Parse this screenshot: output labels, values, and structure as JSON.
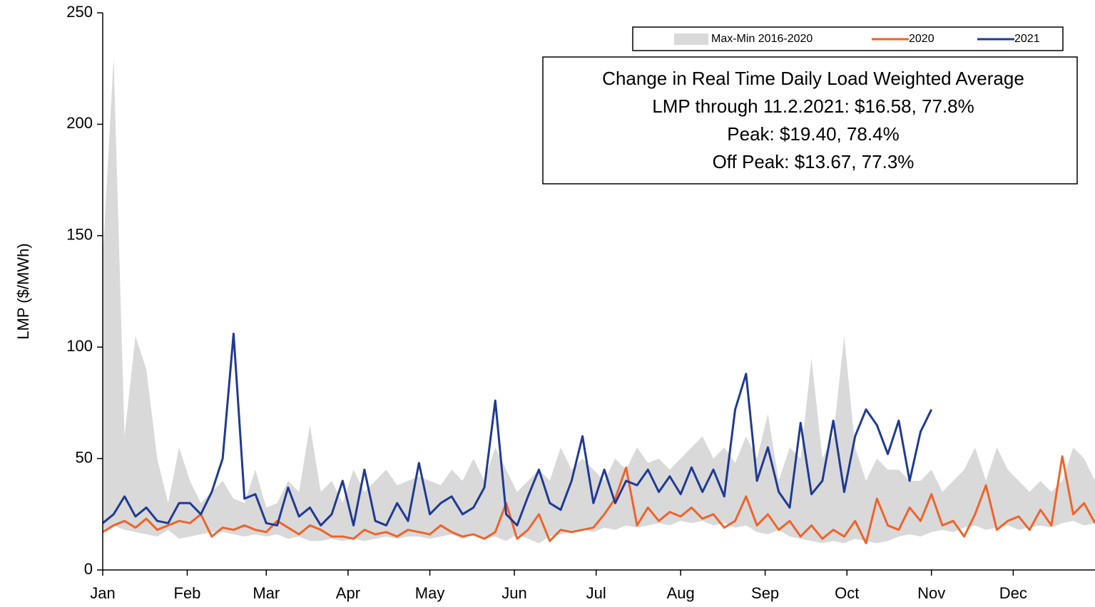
{
  "chart_data": {
    "type": "line",
    "y_label": "LMP ($/MWh)",
    "xlim": [
      0,
      364
    ],
    "xticks": [
      {
        "value": 0,
        "label": "Jan"
      },
      {
        "value": 31,
        "label": "Feb"
      },
      {
        "value": 60,
        "label": "Mar"
      },
      {
        "value": 90,
        "label": "Apr"
      },
      {
        "value": 120,
        "label": "May"
      },
      {
        "value": 151,
        "label": "Jun"
      },
      {
        "value": 181,
        "label": "Jul"
      },
      {
        "value": 212,
        "label": "Aug"
      },
      {
        "value": 243,
        "label": "Sep"
      },
      {
        "value": 273,
        "label": "Oct"
      },
      {
        "value": 304,
        "label": "Nov"
      },
      {
        "value": 334,
        "label": "Dec"
      }
    ],
    "ylim": [
      0,
      250
    ],
    "yticks": [
      0,
      50,
      100,
      150,
      200,
      250
    ],
    "grid": false,
    "x": [
      0,
      4,
      8,
      12,
      16,
      20,
      24,
      28,
      32,
      36,
      40,
      44,
      48,
      52,
      56,
      60,
      64,
      68,
      72,
      76,
      80,
      84,
      88,
      92,
      96,
      100,
      104,
      108,
      112,
      116,
      120,
      124,
      128,
      132,
      136,
      140,
      144,
      148,
      152,
      156,
      160,
      164,
      168,
      172,
      176,
      180,
      184,
      188,
      192,
      196,
      200,
      204,
      208,
      212,
      216,
      220,
      224,
      228,
      232,
      236,
      240,
      244,
      248,
      252,
      256,
      260,
      264,
      268,
      272,
      276,
      280,
      284,
      288,
      292,
      296,
      300,
      304,
      308,
      312,
      316,
      320,
      324,
      328,
      332,
      336,
      340,
      344,
      348,
      352,
      356,
      360,
      364
    ],
    "series": [
      {
        "name": "Max-Min 2016-2020",
        "type": "band",
        "color": "#d9d9d9",
        "upper": [
          140,
          230,
          60,
          105,
          90,
          50,
          30,
          55,
          40,
          30,
          35,
          40,
          32,
          30,
          45,
          28,
          30,
          40,
          35,
          65,
          35,
          40,
          30,
          45,
          35,
          40,
          45,
          38,
          40,
          42,
          40,
          38,
          45,
          40,
          50,
          40,
          55,
          45,
          35,
          40,
          45,
          40,
          55,
          45,
          50,
          45,
          40,
          50,
          45,
          55,
          48,
          50,
          45,
          50,
          55,
          60,
          50,
          55,
          48,
          60,
          50,
          70,
          40,
          55,
          50,
          95,
          50,
          60,
          105,
          55,
          40,
          50,
          45,
          45,
          40,
          40,
          45,
          35,
          40,
          45,
          55,
          40,
          55,
          45,
          40,
          35,
          40,
          35,
          40,
          55,
          50,
          40
        ],
        "lower": [
          18,
          20,
          18,
          17,
          16,
          15,
          18,
          14,
          15,
          16,
          17,
          17,
          16,
          15,
          16,
          15,
          16,
          14,
          15,
          13,
          13,
          14,
          13,
          14,
          13,
          14,
          15,
          14,
          15,
          15,
          14,
          15,
          16,
          14,
          16,
          14,
          15,
          13,
          16,
          14,
          12,
          15,
          16,
          17,
          18,
          17,
          19,
          18,
          20,
          19,
          20,
          21,
          20,
          22,
          21,
          22,
          20,
          21,
          19,
          20,
          17,
          16,
          18,
          15,
          14,
          13,
          12,
          13,
          12,
          14,
          13,
          12,
          13,
          15,
          16,
          15,
          17,
          18,
          17,
          19,
          20,
          18,
          19,
          20,
          18,
          19,
          20,
          19,
          21,
          22,
          20,
          21
        ]
      },
      {
        "name": "2020",
        "type": "line",
        "color": "#f0632a",
        "values": [
          17,
          20,
          22,
          19,
          23,
          18,
          20,
          22,
          21,
          25,
          15,
          19,
          18,
          20,
          18,
          17,
          22,
          19,
          16,
          20,
          18,
          15,
          15,
          14,
          18,
          16,
          17,
          15,
          18,
          17,
          16,
          20,
          17,
          15,
          16,
          14,
          17,
          30,
          14,
          18,
          25,
          13,
          18,
          17,
          18,
          19,
          25,
          32,
          46,
          20,
          28,
          22,
          26,
          24,
          28,
          23,
          25,
          19,
          22,
          33,
          20,
          25,
          18,
          22,
          15,
          20,
          14,
          18,
          15,
          22,
          12,
          32,
          20,
          18,
          28,
          22,
          34,
          20,
          22,
          15,
          25,
          38,
          18,
          22,
          24,
          18,
          27,
          20,
          51,
          25,
          30,
          21
        ]
      },
      {
        "name": "2021",
        "type": "line",
        "color": "#1f3a93",
        "values": [
          21,
          25,
          33,
          24,
          28,
          22,
          21,
          30,
          30,
          25,
          35,
          50,
          106,
          32,
          34,
          21,
          20,
          37,
          24,
          28,
          20,
          25,
          40,
          20,
          45,
          22,
          20,
          30,
          22,
          48,
          25,
          30,
          33,
          25,
          28,
          37,
          76,
          25,
          20,
          33,
          45,
          30,
          27,
          40,
          60,
          30,
          45,
          30,
          40,
          38,
          45,
          35,
          42,
          34,
          46,
          35,
          45,
          33,
          72,
          88,
          40,
          55,
          35,
          28,
          66,
          34,
          40,
          67,
          35,
          60,
          72,
          65,
          52,
          67,
          40,
          62,
          72,
          null,
          null,
          null,
          null,
          null,
          null,
          null,
          null,
          null,
          null,
          null,
          null,
          null,
          null,
          null
        ]
      }
    ],
    "annotation": [
      "Change in Real Time Daily Load Weighted Average",
      "LMP through 11.2.2021: $16.58, 77.8%",
      "Peak: $19.40, 78.4%",
      "Off Peak: $13.67, 77.3%"
    ]
  }
}
